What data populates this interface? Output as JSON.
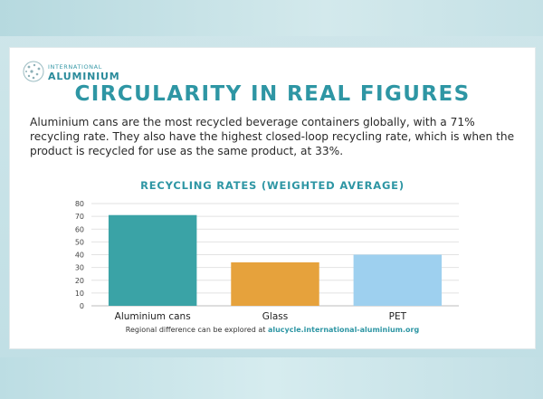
{
  "logo": {
    "line1": "INTERNATIONAL",
    "line2": "ALUMINIUM",
    "icon": "globe-dots-icon"
  },
  "title": "CIRCULARITY IN REAL FIGURES",
  "intro": "Aluminium cans are the most recycled beverage containers globally, with a 71% recycling rate. They also have the highest closed-loop recycling rate, which is when the product is recycled for use as the same product, at 33%.",
  "footnote": {
    "text": "Regional difference can be explored at ",
    "link": "alucycle.international-aluminium.org"
  },
  "colors": {
    "accent": "#2e96a4",
    "aluminium_cans": "#3aa3a6",
    "glass": "#e6a23c",
    "pet": "#9ed0ef"
  },
  "chart_data": {
    "type": "bar",
    "title": "RECYCLING RATES (WEIGHTED AVERAGE)",
    "categories": [
      "Aluminium cans",
      "Glass",
      "PET"
    ],
    "values": [
      71,
      34,
      40
    ],
    "bar_colors": [
      "#3aa3a6",
      "#e6a23c",
      "#9ed0ef"
    ],
    "xlabel": "",
    "ylabel": "",
    "ylim": [
      0,
      80
    ],
    "yticks": [
      0,
      10,
      20,
      30,
      40,
      50,
      60,
      70,
      80
    ],
    "grid": true,
    "legend": "none"
  }
}
